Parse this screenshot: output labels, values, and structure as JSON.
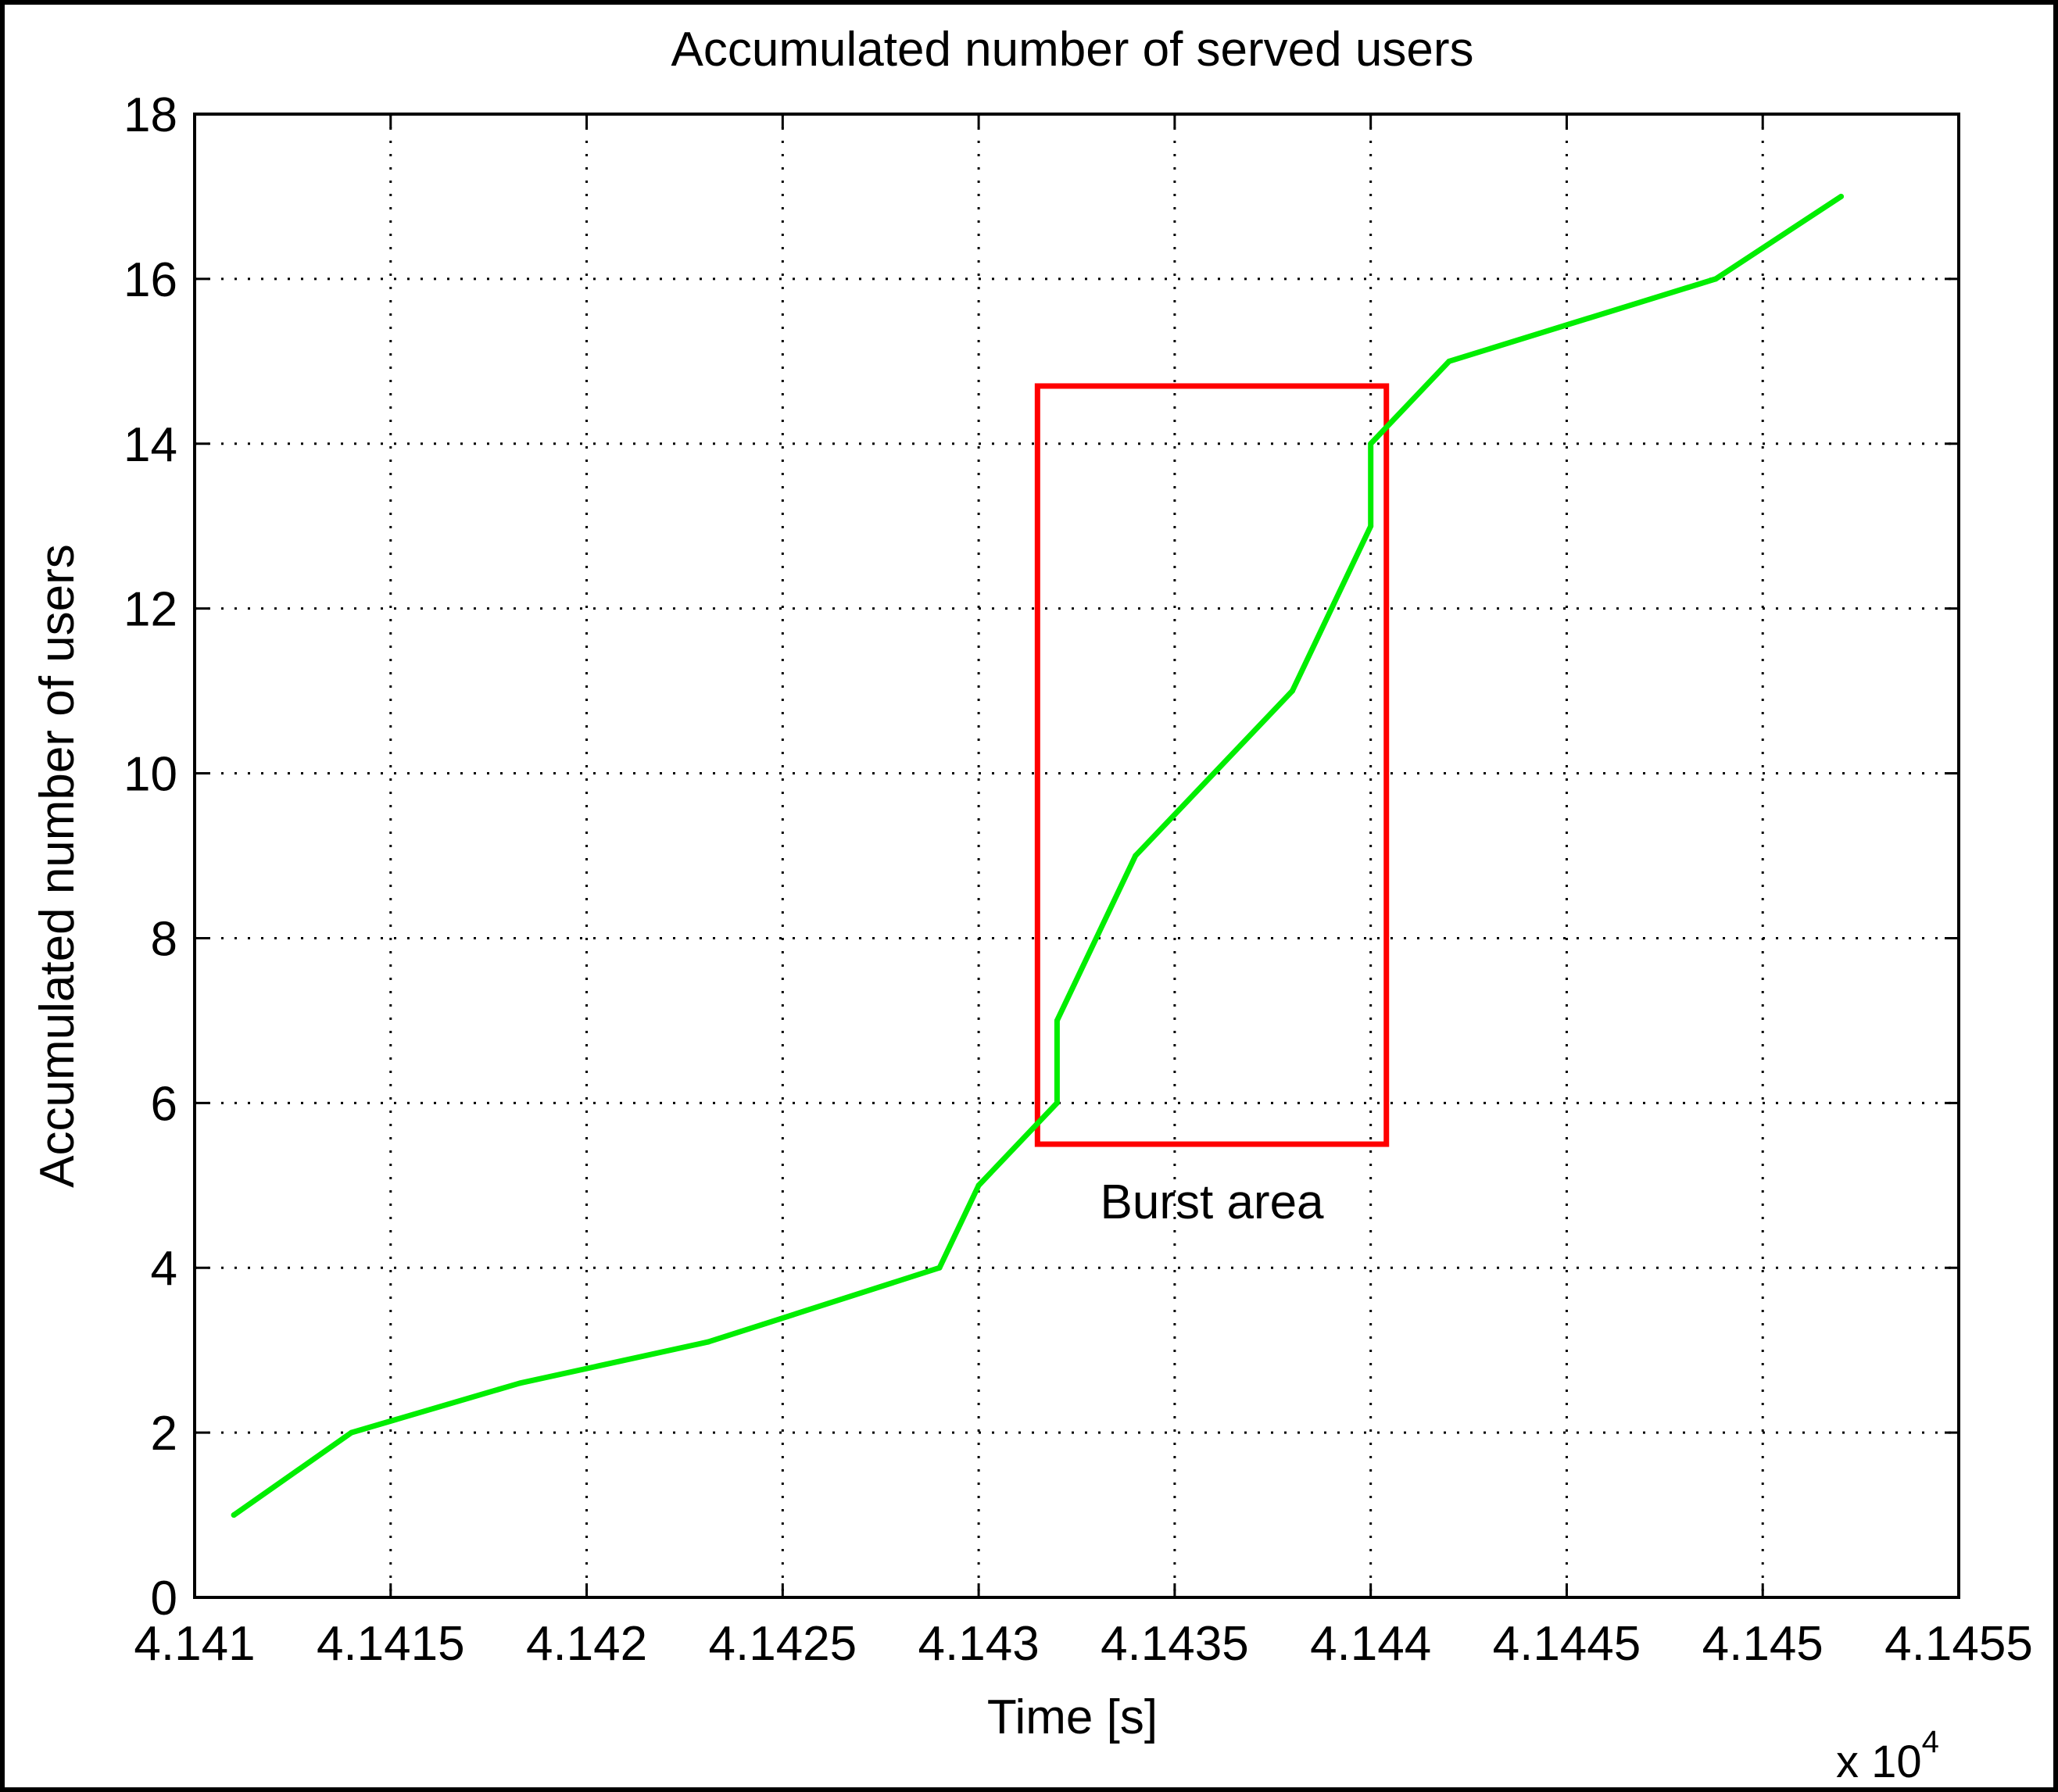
{
  "chart_data": {
    "type": "line",
    "title": "Accumulated number of served users",
    "xlabel": "Time [s]",
    "ylabel": "Accumulated number of users",
    "x_multiplier_label": "x 10",
    "x_multiplier_exponent": "4",
    "xlim": [
      4.141,
      4.1455
    ],
    "ylim": [
      0,
      18
    ],
    "x_ticks": [
      4.141,
      4.1415,
      4.142,
      4.1425,
      4.143,
      4.1435,
      4.144,
      4.1445,
      4.145,
      4.1455
    ],
    "x_tick_labels": [
      "4.141",
      "4.1415",
      "4.142",
      "4.1425",
      "4.143",
      "4.1435",
      "4.144",
      "4.1445",
      "4.145",
      "4.1455"
    ],
    "y_ticks": [
      0,
      2,
      4,
      6,
      8,
      10,
      12,
      14,
      16,
      18
    ],
    "y_tick_labels": [
      "0",
      "2",
      "4",
      "6",
      "8",
      "10",
      "12",
      "14",
      "16",
      "18"
    ],
    "grid": true,
    "series": [
      {
        "color": "#00ee00",
        "x": [
          4.1411,
          4.1414,
          4.14183,
          4.14231,
          4.1429,
          4.143,
          4.1432,
          4.1432,
          4.1434,
          4.1438,
          4.144,
          4.144,
          4.1442,
          4.14488,
          4.1452
        ],
        "y": [
          1,
          2,
          2.6,
          3.1,
          4,
          5,
          6,
          7,
          9,
          11,
          13,
          14,
          15,
          16,
          17
        ]
      }
    ],
    "annotations": [
      {
        "text": "Burst area",
        "color": "#ff0000",
        "box_x": [
          4.14315,
          4.14404
        ],
        "box_y": [
          5.5,
          14.7
        ]
      }
    ]
  }
}
